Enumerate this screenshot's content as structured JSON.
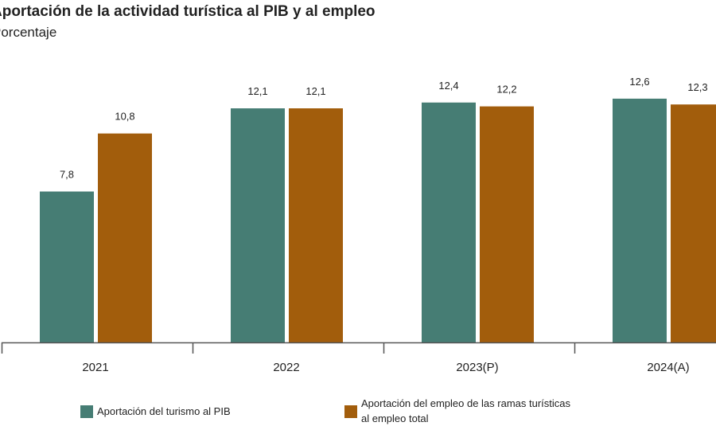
{
  "chart_data": {
    "type": "bar",
    "title": "Aportación de la actividad turística al PIB y al empleo",
    "subtitle": "Porcentaje",
    "categories": [
      "2021",
      "2022",
      "2023(P)",
      "2024(A)"
    ],
    "series": [
      {
        "name": "Aportación del turismo al PIB",
        "values": [
          7.8,
          12.1,
          12.4,
          12.6
        ],
        "labels": [
          "7,8",
          "12,1",
          "12,4",
          "12,6"
        ],
        "color": "#467d74"
      },
      {
        "name": "Aportación del empleo de las ramas turísticas al empleo total",
        "values": [
          10.8,
          12.1,
          12.2,
          12.3
        ],
        "labels": [
          "10,8",
          "12,1",
          "12,2",
          "12,3"
        ],
        "color": "#a25d0c"
      }
    ],
    "ylim": [
      0,
      17.7
    ],
    "grid": false,
    "legend": "bottom",
    "legend_lines": [
      [
        "Aportación del turismo al PIB"
      ],
      [
        "Aportación del empleo de las ramas turísticas",
        "al empleo total"
      ]
    ]
  }
}
